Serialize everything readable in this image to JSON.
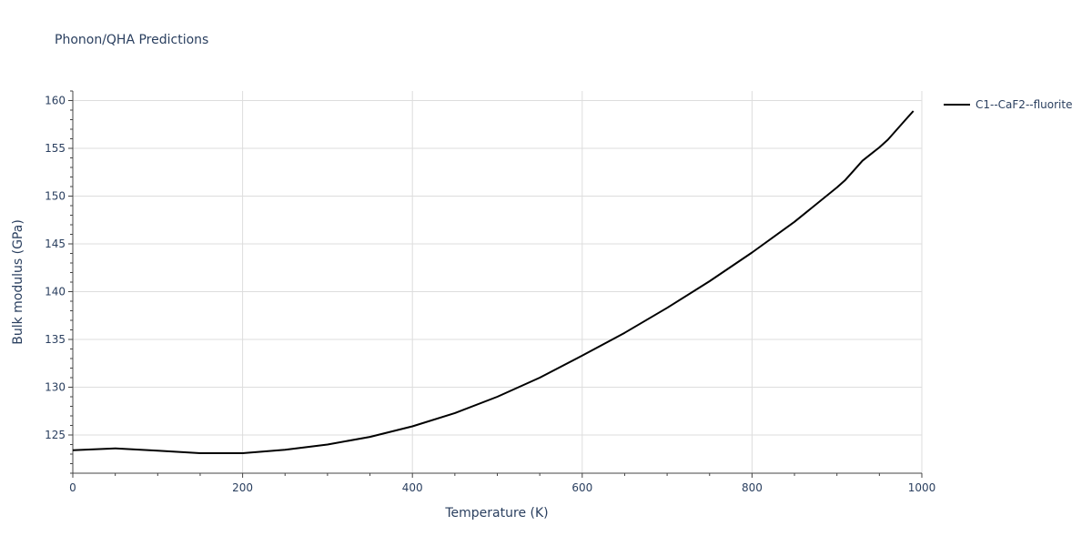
{
  "chart_data": {
    "type": "line",
    "title": "Phonon/QHA Predictions",
    "xlabel": "Temperature (K)",
    "ylabel": "Bulk modulus (GPa)",
    "xlim": [
      0,
      1000
    ],
    "ylim": [
      121,
      161
    ],
    "x_ticks": [
      0,
      200,
      400,
      600,
      800,
      1000
    ],
    "y_ticks": [
      125,
      130,
      135,
      140,
      145,
      150,
      155,
      160
    ],
    "x_tick_labels": [
      "0",
      "200",
      "400",
      "600",
      "800",
      "1000"
    ],
    "y_tick_labels": [
      "125",
      "130",
      "135",
      "140",
      "145",
      "150",
      "155",
      "160"
    ],
    "grid": true,
    "legend_position": "top-right",
    "series": [
      {
        "name": "C1--CaF2--fluorite",
        "color": "#000000",
        "x": [
          0,
          50,
          100,
          150,
          200,
          250,
          300,
          350,
          400,
          450,
          500,
          550,
          600,
          650,
          700,
          750,
          800,
          850,
          900,
          910,
          920,
          930,
          940,
          950,
          960,
          970,
          980,
          990
        ],
        "y": [
          123.4,
          123.6,
          123.35,
          123.1,
          123.1,
          123.45,
          124.0,
          124.8,
          125.9,
          127.3,
          129.0,
          131.0,
          133.3,
          135.7,
          138.3,
          141.1,
          144.1,
          147.3,
          150.9,
          151.7,
          152.7,
          153.7,
          154.4,
          155.1,
          155.9,
          156.9,
          157.9,
          158.9
        ]
      }
    ]
  }
}
